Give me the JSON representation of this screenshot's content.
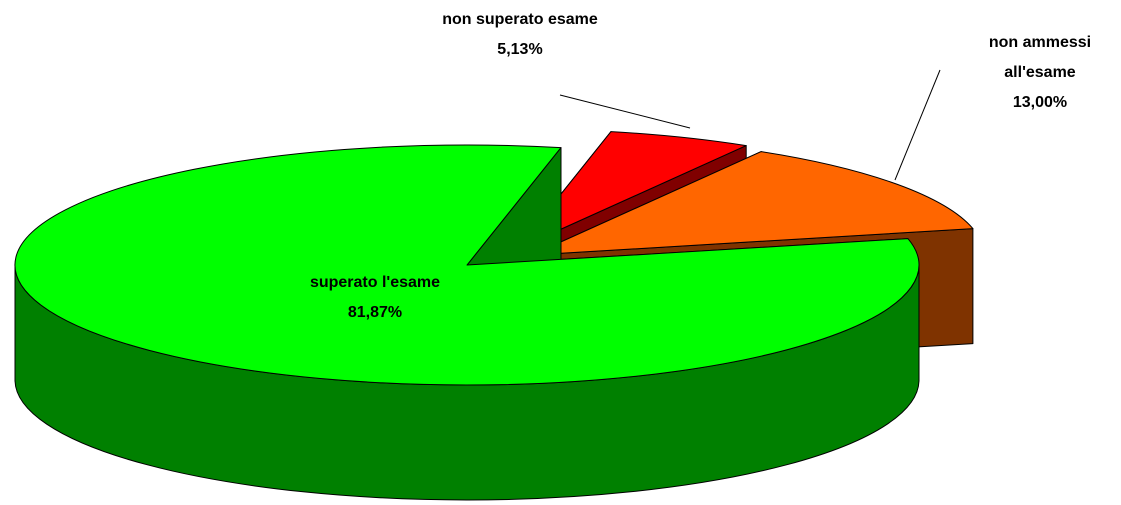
{
  "chart_data": {
    "type": "pie",
    "categories": [
      "non superato esame",
      "non ammessi all'esame",
      "superato l'esame"
    ],
    "values": [
      5.13,
      13.0,
      81.87
    ],
    "value_labels": [
      "5,13%",
      "13,00%",
      "81,87%"
    ],
    "colors": [
      "#ff0000",
      "#ff6600",
      "#00ff00"
    ],
    "side_colors": [
      "#800000",
      "#7f3300",
      "#008000"
    ]
  }
}
